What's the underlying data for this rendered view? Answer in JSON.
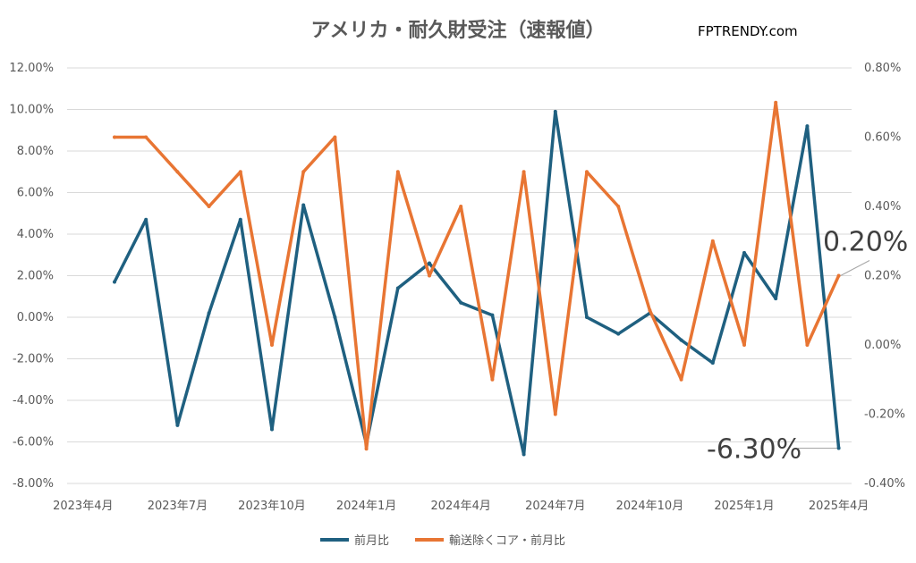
{
  "chart_data": {
    "type": "line",
    "title": "アメリカ・耐久財受注（速報値）",
    "brand": "FPTRENDY.com",
    "x_tick_labels": [
      "2023年4月",
      "2023年7月",
      "2023年10月",
      "2024年1月",
      "2024年4月",
      "2024年7月",
      "2024年10月",
      "2025年1月",
      "2025年4月"
    ],
    "y_left": {
      "ylim": [
        -8,
        12
      ],
      "tick_labels": [
        "12.00%",
        "10.00%",
        "8.00%",
        "6.00%",
        "4.00%",
        "2.00%",
        "0.00%",
        "-2.00%",
        "-4.00%",
        "-6.00%",
        "-8.00%"
      ]
    },
    "y_right": {
      "ylim": [
        -0.4,
        0.8
      ],
      "tick_labels": [
        "0.80%",
        "0.60%",
        "0.40%",
        "0.20%",
        "0.00%",
        "-0.20%",
        "-0.40%"
      ]
    },
    "grid": true,
    "legend_position": "bottom",
    "x": [
      "2023-05",
      "2023-06",
      "2023-07",
      "2023-08",
      "2023-09",
      "2023-10",
      "2023-11",
      "2023-12",
      "2024-01",
      "2024-02",
      "2024-03",
      "2024-04",
      "2024-05",
      "2024-06",
      "2024-07",
      "2024-08",
      "2024-09",
      "2024-10",
      "2024-11",
      "2024-12",
      "2025-01",
      "2025-02",
      "2025-03",
      "2025-04"
    ],
    "series": [
      {
        "name": "前月比",
        "axis": "left",
        "color": "#1f6080",
        "values": [
          1.7,
          4.7,
          -5.2,
          0.2,
          4.7,
          -5.4,
          5.4,
          0.0,
          -6.1,
          1.4,
          2.6,
          0.7,
          0.1,
          -6.6,
          9.9,
          0.0,
          -0.8,
          0.2,
          -1.1,
          -2.2,
          3.1,
          0.9,
          9.2,
          -6.3
        ]
      },
      {
        "name": "輸送除くコア・前月比",
        "axis": "right",
        "color": "#e87533",
        "values": [
          0.6,
          0.6,
          0.5,
          0.4,
          0.5,
          0.0,
          0.5,
          0.6,
          -0.3,
          0.5,
          0.2,
          0.4,
          -0.1,
          0.5,
          -0.2,
          0.5,
          0.4,
          0.1,
          -0.1,
          0.3,
          0.0,
          0.7,
          0.0,
          0.2
        ]
      }
    ],
    "annotations": [
      "0.20%",
      "-6.30%"
    ]
  }
}
